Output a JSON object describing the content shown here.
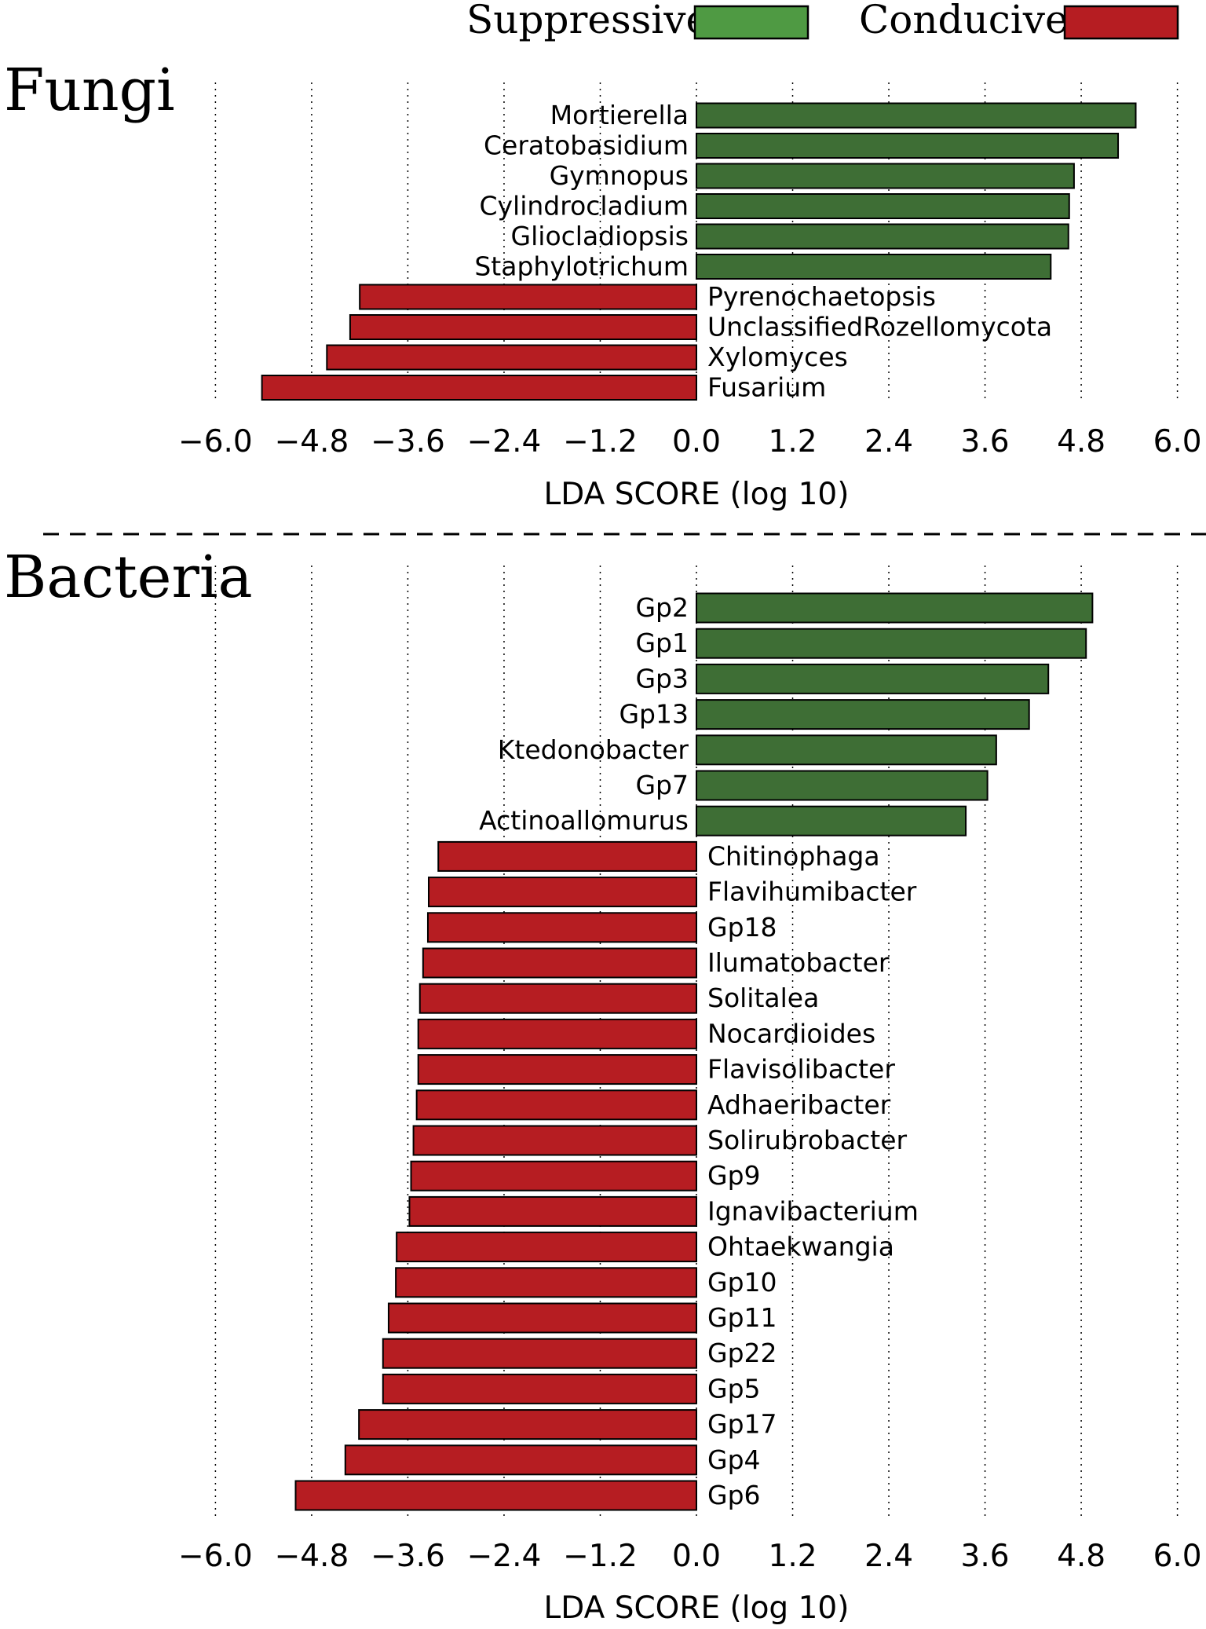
{
  "legend": [
    {
      "label": "Suppressive",
      "color": "#3e6e35"
    },
    {
      "label": "Conducive",
      "color": "#b61d22"
    }
  ],
  "colors": {
    "positive": "#3e6e35",
    "negative": "#b61d22",
    "legend_positive": "#4f9a43",
    "legend_negative": "#b61d22"
  },
  "chart_data": [
    {
      "type": "bar",
      "orientation": "horizontal",
      "panel_label": "Fungi",
      "xlabel": "LDA SCORE (log 10)",
      "xlim": [
        -6.0,
        6.0
      ],
      "xticks": [
        -6.0,
        -4.8,
        -3.6,
        -2.4,
        -1.2,
        0.0,
        1.2,
        2.4,
        3.6,
        4.8,
        6.0
      ],
      "xtick_labels": [
        "−6.0",
        "−4.8",
        "−3.6",
        "−2.4",
        "−1.2",
        "0.0",
        "1.2",
        "2.4",
        "3.6",
        "4.8",
        "6.0"
      ],
      "grid": "vertical dotted",
      "categories": [
        "Mortierella",
        "Ceratobasidium",
        "Gymnopus",
        "Cylindrocladium",
        "Gliocladiopsis",
        "Staphylotrichum",
        "Pyrenochaetopsis",
        "UnclassifiedRozellomycota",
        "Xylomyces",
        "Fusarium"
      ],
      "values": [
        5.48,
        5.26,
        4.71,
        4.65,
        4.64,
        4.42,
        -4.2,
        -4.32,
        -4.61,
        -5.42
      ]
    },
    {
      "type": "bar",
      "orientation": "horizontal",
      "panel_label": "Bacteria",
      "xlabel": "LDA SCORE (log 10)",
      "xlim": [
        -6.0,
        6.0
      ],
      "xticks": [
        -6.0,
        -4.8,
        -3.6,
        -2.4,
        -1.2,
        0.0,
        1.2,
        2.4,
        3.6,
        4.8,
        6.0
      ],
      "xtick_labels": [
        "−6.0",
        "−4.8",
        "−3.6",
        "−2.4",
        "−1.2",
        "0.0",
        "1.2",
        "2.4",
        "3.6",
        "4.8",
        "6.0"
      ],
      "grid": "vertical dotted",
      "categories": [
        "Gp2",
        "Gp1",
        "Gp3",
        "Gp13",
        "Ktedonobacter",
        "Gp7",
        "Actinoallomurus",
        "Chitinophaga",
        "Flavihumibacter",
        "Gp18",
        "Ilumatobacter",
        "Solitalea",
        "Nocardioides",
        "Flavisolibacter",
        "Adhaeribacter",
        "Solirubrobacter",
        "Gp9",
        "Ignavibacterium",
        "Ohtaekwangia",
        "Gp10",
        "Gp11",
        "Gp22",
        "Gp5",
        "Gp17",
        "Gp4",
        "Gp6"
      ],
      "values": [
        4.94,
        4.86,
        4.39,
        4.15,
        3.74,
        3.63,
        3.36,
        -3.22,
        -3.34,
        -3.35,
        -3.41,
        -3.45,
        -3.47,
        -3.47,
        -3.49,
        -3.53,
        -3.56,
        -3.58,
        -3.74,
        -3.75,
        -3.84,
        -3.91,
        -3.91,
        -4.21,
        -4.38,
        -5.0
      ]
    }
  ]
}
